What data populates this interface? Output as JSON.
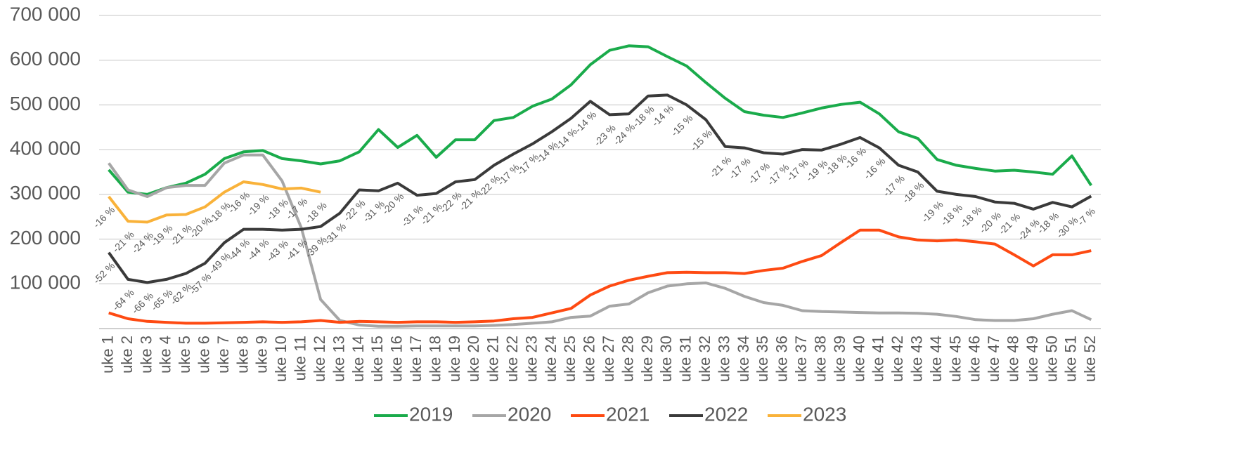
{
  "chart_data": {
    "type": "line",
    "categories": [
      "uke 1",
      "uke 2",
      "uke 3",
      "uke 4",
      "uke 5",
      "uke 6",
      "uke 7",
      "uke 8",
      "uke 9",
      "uke 10",
      "uke 11",
      "uke 12",
      "uke 13",
      "uke 14",
      "uke 15",
      "uke 16",
      "uke 17",
      "uke 18",
      "uke 19",
      "uke 20",
      "uke 21",
      "uke 22",
      "uke 23",
      "uke 24",
      "uke 25",
      "uke 26",
      "uke 27",
      "uke 28",
      "uke 29",
      "uke 30",
      "uke 31",
      "uke 32",
      "uke 33",
      "uke 34",
      "uke 35",
      "uke 36",
      "uke 37",
      "uke 38",
      "uke 39",
      "uke 40",
      "uke 41",
      "uke 42",
      "uke 43",
      "uke 44",
      "uke 45",
      "uke 46",
      "uke 47",
      "uke 48",
      "uke 49",
      "uke 50",
      "uke 51",
      "uke 52"
    ],
    "series": [
      {
        "name": "2019",
        "color": "#1aab4b",
        "values": [
          355000,
          305000,
          300000,
          315000,
          325000,
          345000,
          380000,
          395000,
          398000,
          380000,
          375000,
          368000,
          375000,
          395000,
          445000,
          405000,
          432000,
          383000,
          422000,
          422000,
          465000,
          472000,
          497000,
          513000,
          545000,
          590000,
          622000,
          632000,
          630000,
          608000,
          587000,
          550000,
          515000,
          485000,
          477000,
          472000,
          482000,
          493000,
          501000,
          506000,
          480000,
          440000,
          425000,
          378000,
          365000,
          358000,
          352000,
          354000,
          350000,
          345000,
          386000,
          320000
        ]
      },
      {
        "name": "2020",
        "color": "#a6a6a6",
        "values": [
          370000,
          310000,
          295000,
          315000,
          320000,
          320000,
          370000,
          388000,
          388000,
          330000,
          225000,
          65000,
          18000,
          8000,
          5000,
          5000,
          6000,
          6000,
          6000,
          6000,
          7000,
          9000,
          12000,
          15000,
          25000,
          28000,
          50000,
          55000,
          80000,
          95000,
          100000,
          102000,
          90000,
          72000,
          58000,
          52000,
          40000,
          38000,
          37000,
          36000,
          35000,
          35000,
          34000,
          32000,
          27000,
          20000,
          18000,
          18000,
          22000,
          32000,
          40000,
          20000
        ]
      },
      {
        "name": "2021",
        "color": "#fe4a12",
        "values": [
          35000,
          22000,
          16000,
          14000,
          12000,
          12000,
          13000,
          14000,
          15000,
          14000,
          15000,
          18000,
          14000,
          16000,
          15000,
          14000,
          15000,
          15000,
          14000,
          15000,
          17000,
          22000,
          25000,
          35000,
          45000,
          75000,
          95000,
          108000,
          117000,
          125000,
          126000,
          125000,
          125000,
          123000,
          130000,
          135000,
          150000,
          163000,
          192000,
          220000,
          220000,
          205000,
          198000,
          196000,
          198000,
          194000,
          189000,
          165000,
          140000,
          165000,
          165000,
          174000
        ]
      },
      {
        "name": "2022",
        "color": "#3a3a3a",
        "values": [
          170000,
          110000,
          103000,
          110000,
          123000,
          146000,
          192000,
          222000,
          222000,
          220000,
          222000,
          228000,
          258000,
          310000,
          308000,
          325000,
          298000,
          302000,
          328000,
          333000,
          365000,
          390000,
          413000,
          440000,
          470000,
          508000,
          478000,
          480000,
          520000,
          522000,
          500000,
          467000,
          407000,
          404000,
          393000,
          390000,
          400000,
          399000,
          412000,
          427000,
          404000,
          365000,
          350000,
          307000,
          300000,
          295000,
          283000,
          280000,
          267000,
          282000,
          272000,
          296000
        ],
        "point_labels": [
          "-52 %",
          "-64 %",
          "-66 %",
          "-65 %",
          "-62 %",
          "-57 %",
          "-49 %",
          "-44 %",
          "-44 %",
          "-43 %",
          "-41 %",
          "-39 %",
          "-31 %",
          "-22 %",
          "-31 %",
          "-20 %",
          "-31 %",
          "-21 %",
          "-22 %",
          "-21 %",
          "-22 %",
          "-17 %",
          "-17 %",
          "-14 %",
          "-14 %",
          "-14 %",
          "-23 %",
          "-24 %",
          "-18 %",
          "-14 %",
          "-15 %",
          "-15 %",
          "-21 %",
          "-17 %",
          "-17 %",
          "-17 %",
          "-17 %",
          "-19 %",
          "-18 %",
          "-16 %",
          "-16 %",
          "-17 %",
          "-18 %",
          "-19 %",
          "-18 %",
          "-18 %",
          "-20 %",
          "-21 %",
          "-24 %",
          "-18 %",
          "-30 %",
          "-7 %"
        ]
      },
      {
        "name": "2023",
        "color": "#f9b23a",
        "values": [
          295000,
          240000,
          238000,
          254000,
          255000,
          272000,
          305000,
          328000,
          322000,
          312000,
          314000,
          305000,
          null,
          null,
          null,
          null,
          null,
          null,
          null,
          null,
          null,
          null,
          null,
          null,
          null,
          null,
          null,
          null,
          null,
          null,
          null,
          null,
          null,
          null,
          null,
          null,
          null,
          null,
          null,
          null,
          null,
          null,
          null,
          null,
          null,
          null,
          null,
          null,
          null,
          null,
          null,
          null
        ],
        "point_labels": [
          "-16 %",
          "-21 %",
          "-24 %",
          "-19 %",
          "-21 %",
          "-20 %",
          "-18 %",
          "-16 %",
          "-19 %",
          "-18 %",
          "-17 %",
          "-18 %",
          null,
          null,
          null,
          null,
          null,
          null,
          null,
          null,
          null,
          null,
          null,
          null,
          null,
          null,
          null,
          null,
          null,
          null,
          null,
          null,
          null,
          null,
          null,
          null,
          null,
          null,
          null,
          null,
          null,
          null,
          null,
          null,
          null,
          null,
          null,
          null,
          null,
          null,
          null,
          null
        ]
      }
    ],
    "ylim": [
      0,
      700000
    ],
    "yticks": [
      {
        "value": 100000,
        "label": "100 000"
      },
      {
        "value": 200000,
        "label": "200 000"
      },
      {
        "value": 300000,
        "label": "300 000"
      },
      {
        "value": 400000,
        "label": "400 000"
      },
      {
        "value": 500000,
        "label": "500 000"
      },
      {
        "value": 600000,
        "label": "600 000"
      },
      {
        "value": 700000,
        "label": "700 000"
      }
    ],
    "grid": true,
    "legend": "bottom"
  }
}
